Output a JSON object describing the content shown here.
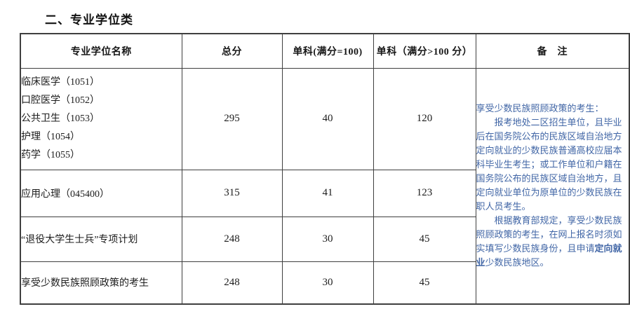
{
  "title": "二、专业学位类",
  "colors": {
    "remark_text": "#4166a6",
    "table_border": "#3f3f3f",
    "body_text": "#1c1c1c"
  },
  "table": {
    "headers": {
      "name": "专业学位名称",
      "total": "总分",
      "single_100": "单科(满分=100)",
      "single_over_100": "单科（满分>100 分）",
      "remark": "备　注"
    },
    "rows": [
      {
        "name_lines": [
          "临床医学（1051）",
          "口腔医学（1052）",
          "公共卫生（1053）",
          "护理（1054）",
          "药学（1055）"
        ],
        "total": "295",
        "single_100": "40",
        "single_over_100": "120"
      },
      {
        "name_lines": [
          "应用心理（045400）"
        ],
        "total": "315",
        "single_100": "41",
        "single_over_100": "123"
      },
      {
        "name_lines": [
          "“退役大学生士兵”专项计划"
        ],
        "total": "248",
        "single_100": "30",
        "single_over_100": "45"
      },
      {
        "name_lines": [
          "享受少数民族照顾政策的考生"
        ],
        "total": "248",
        "single_100": "30",
        "single_over_100": "45"
      }
    ],
    "remark": {
      "heading": "享受少数民族照顾政策的考生：",
      "para1": "报考地处二区招生单位，且毕业后在国务院公布的民族区域自治地方定向就业的少数民族普通高校应届本科毕业生考生；或工作单位和户籍在国务院公布的民族区域自治地方，且定向就业单位为原单位的少数民族在职人员考生。",
      "para2_before": "根据教育部规定，享受少数民族照顾政策的考生，在网上报名时须如实填写少数民族身份，且申请",
      "para2_bold": "定向就业",
      "para2_after": "少数民族地区。"
    }
  }
}
